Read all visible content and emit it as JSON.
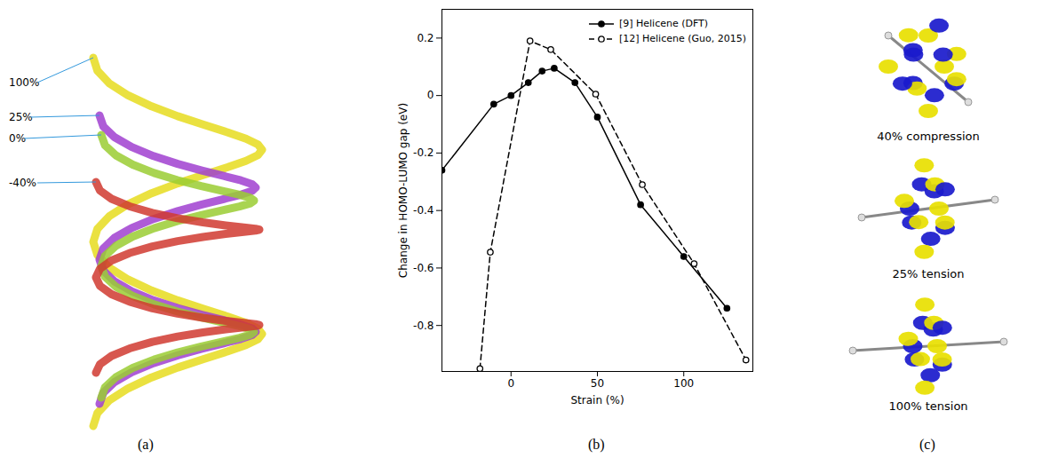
{
  "chart_data": {
    "type": "line",
    "panel_label": "(b)",
    "x_label": "Strain (%)",
    "y_label": "Change in HOMO-LUMO gap (eV)",
    "xlim": [
      -40,
      140
    ],
    "xticks": [
      0,
      50,
      100
    ],
    "ylim": [
      -0.96,
      0.3
    ],
    "yticks": [
      -0.8,
      -0.6,
      -0.4,
      -0.2,
      0,
      0.2
    ],
    "legend": "upper right",
    "series": [
      {
        "name": "[9] Helicene (DFT)",
        "color": "#000000",
        "marker": "dot",
        "line_style": "solid",
        "x": [
          -40,
          -10,
          0,
          10,
          18,
          25,
          37,
          50,
          75,
          100,
          125
        ],
        "values": [
          -0.26,
          -0.03,
          0,
          0.045,
          0.085,
          0.095,
          0.045,
          -0.075,
          -0.38,
          -0.56,
          -0.74
        ]
      },
      {
        "name": "[12] Helicene (Guo, 2015)",
        "color": "#000000",
        "marker": "circle",
        "line_style": "dashed",
        "x": [
          -18,
          -12,
          11,
          23,
          49,
          76,
          106,
          136
        ],
        "values": [
          -0.95,
          -0.545,
          0.19,
          0.16,
          0.005,
          -0.31,
          -0.585,
          -0.92
        ]
      }
    ]
  },
  "panel_a": {
    "label": "(a)",
    "strain_labels": [
      "100%",
      "25%",
      "0%",
      "-40%"
    ]
  },
  "panel_c": {
    "label": "(c)",
    "captions": [
      "40% compression",
      "25% tension",
      "100% tension"
    ]
  }
}
